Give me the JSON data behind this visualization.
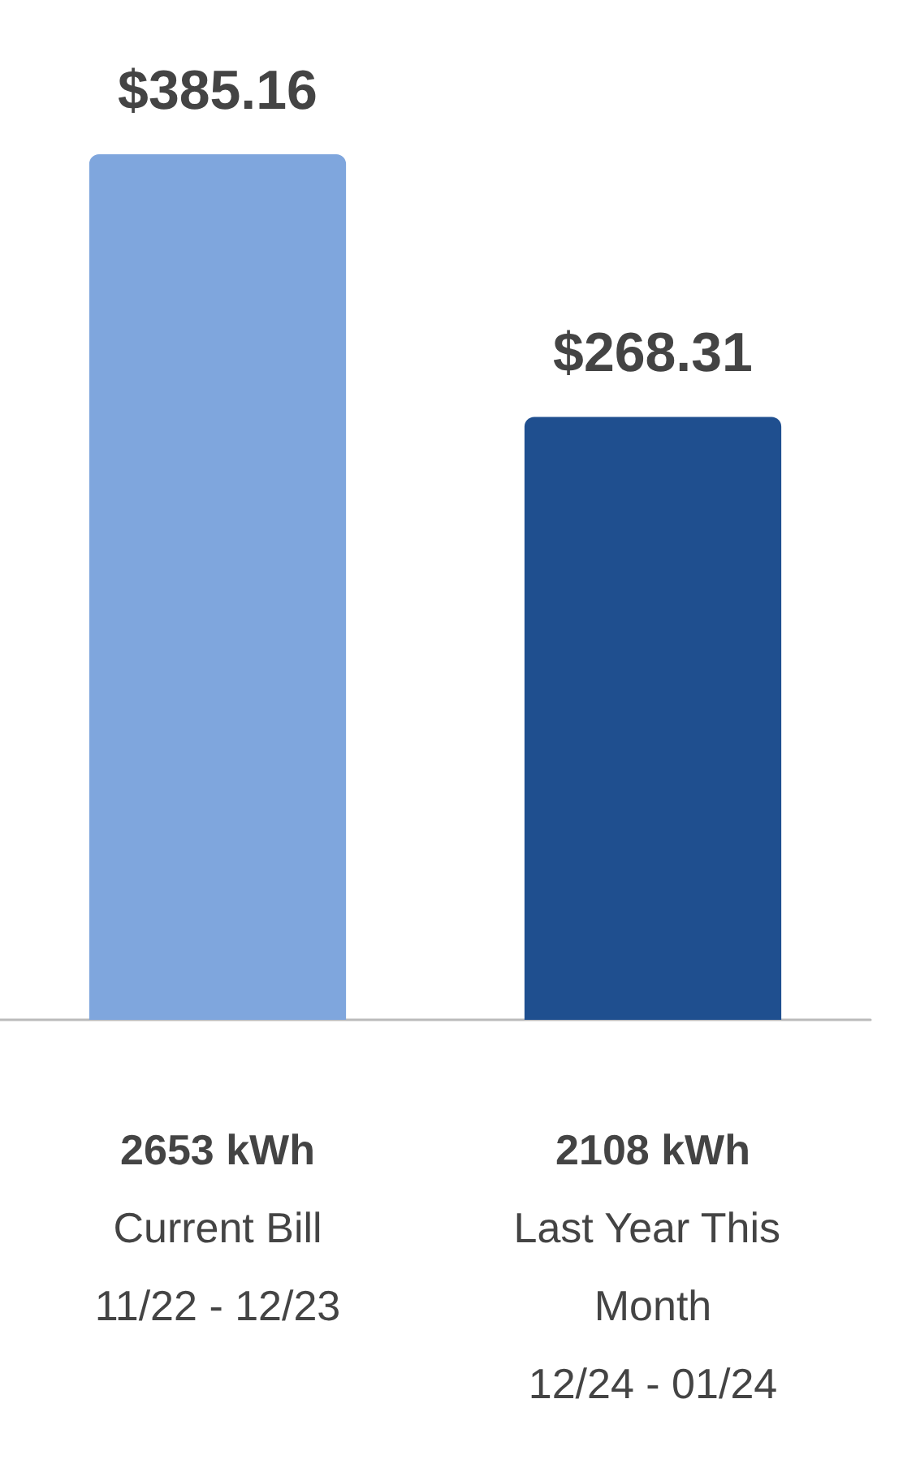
{
  "chart_data": {
    "type": "bar",
    "categories": [
      "2653 kWh\nCurrent Bill\n11/22 - 12/23",
      "2108 kWh\nLast Year This Month\n12/24 - 01/24"
    ],
    "values": [
      385.16,
      268.31
    ],
    "colors": [
      "#7fa6dd",
      "#1f4f8f"
    ],
    "value_labels": [
      "$385.16",
      "$268.31"
    ],
    "tick_labels": "x"
  }
}
